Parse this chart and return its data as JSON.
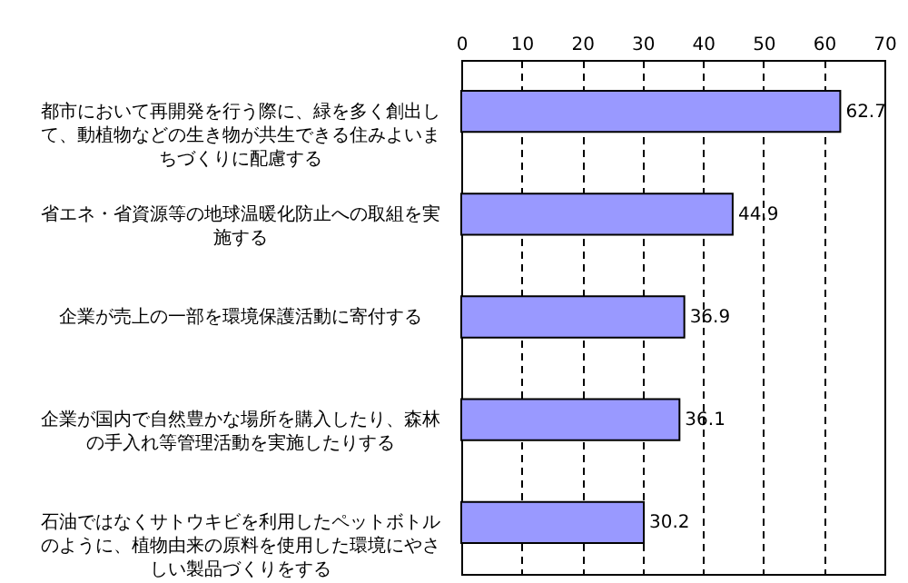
{
  "chart_data": {
    "type": "bar",
    "orientation": "horizontal",
    "categories": [
      "都市において再開発を行う際に、緑を多く創出して、動植物などの生き物が共生できる住みよいまちづくりに配慮する",
      "省エネ・省資源等の地球温暖化防止への取組を実施する",
      "企業が売上の一部を環境保護活動に寄付する",
      "企業が国内で自然豊かな場所を購入したり、森林の手入れ等管理活動を実施したりする",
      "石油ではなくサトウキビを利用したペットボトルのように、植物由来の原料を使用した環境にやさしい製品づくりをする"
    ],
    "values": [
      62.7,
      44.9,
      36.9,
      36.1,
      30.2
    ],
    "color": "#9999ff",
    "xlim": [
      0,
      70
    ],
    "xticks": [
      0,
      10,
      20,
      30,
      40,
      50,
      60,
      70
    ],
    "grid": "x",
    "data_labels": true
  }
}
